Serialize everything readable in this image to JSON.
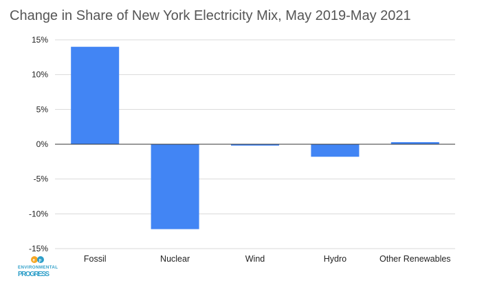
{
  "chart_data": {
    "type": "bar",
    "title": "Change in Share of New York Electricity Mix, May 2019-May 2021",
    "xlabel": "",
    "ylabel": "",
    "categories": [
      "Fossil",
      "Nuclear",
      "Wind",
      "Hydro",
      "Other Renewables"
    ],
    "values": [
      14.0,
      -12.2,
      -0.1,
      -1.8,
      0.3
    ],
    "unit": "%",
    "ylim": [
      -15,
      15
    ],
    "yticks": [
      15,
      10,
      5,
      0,
      -5,
      -10,
      -15
    ],
    "ytick_labels": [
      "15%",
      "10%",
      "5%",
      "0%",
      "-5%",
      "-10%",
      "-15%"
    ],
    "grid": true,
    "legend": "none",
    "bar_color": "#4285f4"
  },
  "logo": {
    "text_line1": "ENVIRONMENTAL",
    "text_line2": "PROGRESS",
    "icon": "ep-logo-icon"
  }
}
